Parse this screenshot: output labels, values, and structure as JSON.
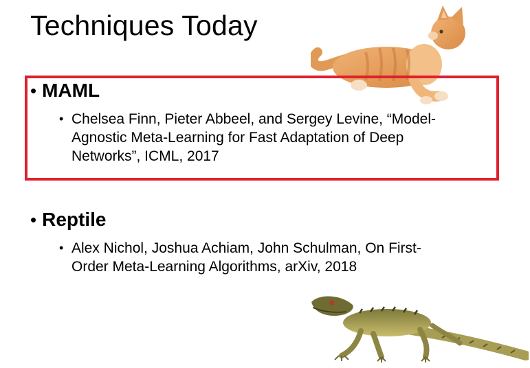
{
  "slide": {
    "title": "Techniques Today",
    "sections": [
      {
        "heading": "MAML",
        "reference": "Chelsea Finn, Pieter Abbeel, and Sergey Levine, “Model-\nAgnostic Meta-Learning for Fast Adaptation of Deep\nNetworks”, ICML, 2017"
      },
      {
        "heading": "Reptile",
        "reference": "Alex Nichol, Joshua Achiam, John Schulman, On First-\nOrder Meta-Learning Algorithms, arXiv, 2018"
      }
    ],
    "bullet_symbol": "•",
    "highlight_color": "#e0202e",
    "images": [
      "cat-illustration",
      "lizard-illustration"
    ]
  }
}
